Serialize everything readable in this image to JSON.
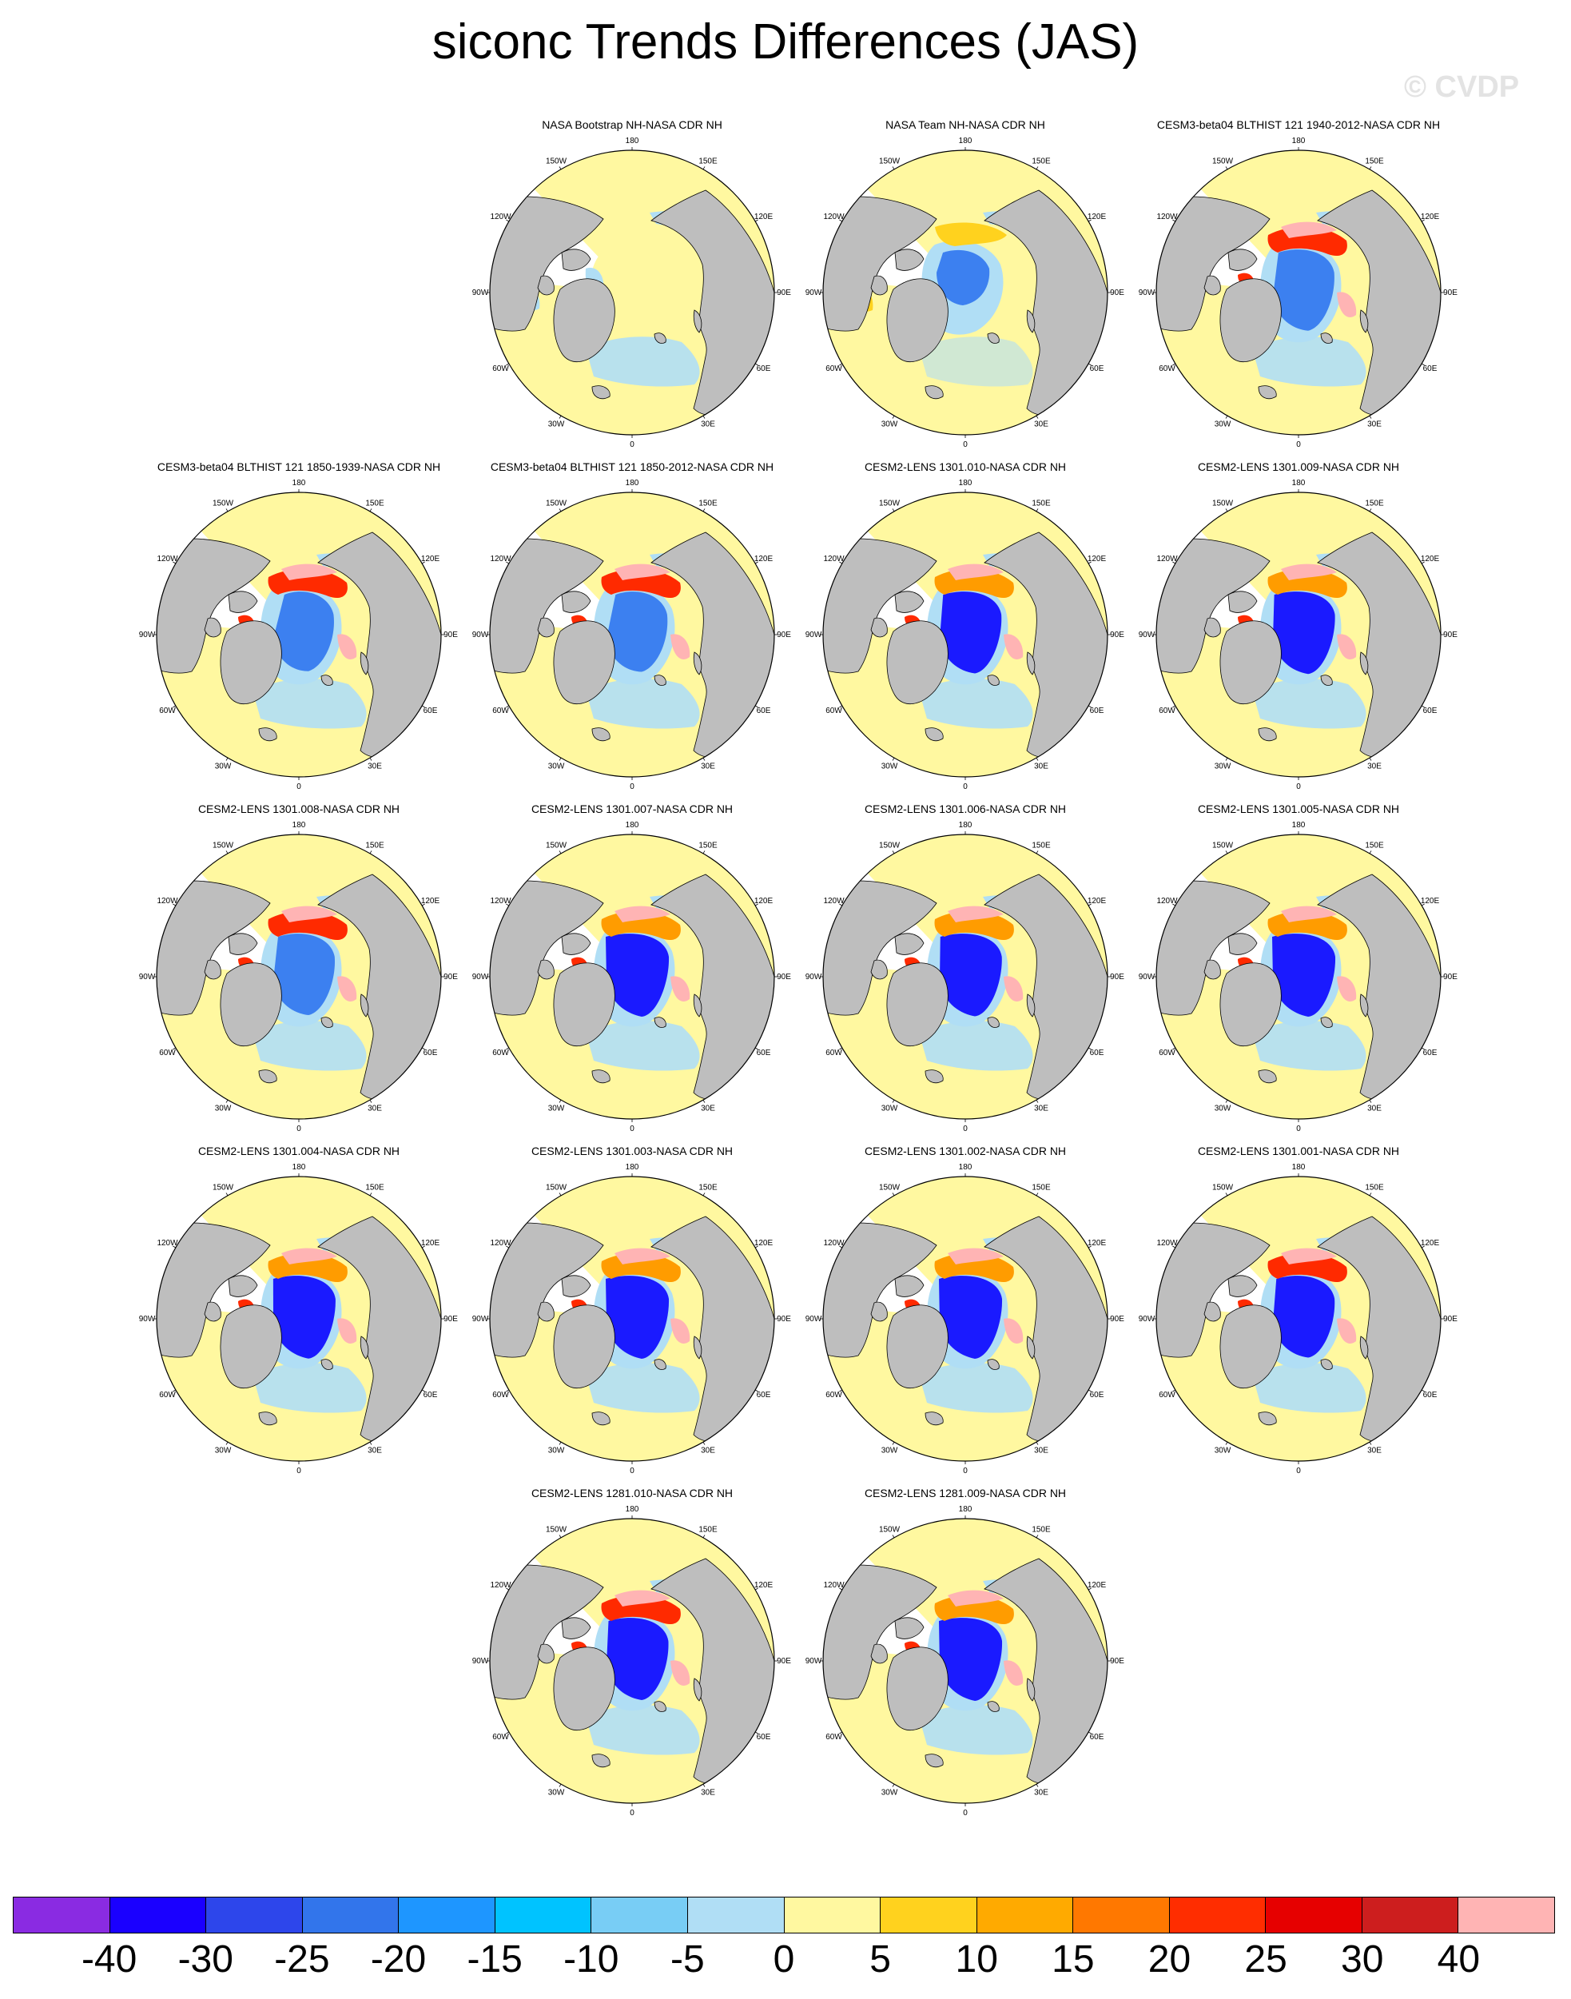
{
  "title": "siconc Trends Differences (JAS)",
  "watermark": "© CVDP",
  "lon_labels": [
    "180",
    "150E",
    "120E",
    "90E",
    "60E",
    "30E",
    "0",
    "30W",
    "60W",
    "90W",
    "120W",
    "150W"
  ],
  "colors": {
    "land": "#bebebe",
    "missing": "#ffffff",
    "ocean_zero": "#fff8a0",
    "pos_light": "#ffd21e",
    "pos_mid": "#ff9c00",
    "pos_strong": "#ff2a00",
    "pos_extreme": "#ffb4b4",
    "neg_light": "#b0def5",
    "neg_mid": "#3c80f0",
    "neg_strong": "#1a1aff",
    "outline": "#000000"
  },
  "colorbar": {
    "colors": [
      "#8a2be2",
      "#1a00ff",
      "#2d46eb",
      "#3275eb",
      "#1e96ff",
      "#00c3ff",
      "#78cdf5",
      "#b0def5",
      "#fff8a0",
      "#ffd21e",
      "#ffaa00",
      "#ff7800",
      "#ff2d00",
      "#e60000",
      "#cd1e1e",
      "#ffb4b4"
    ],
    "labels": [
      "-40",
      "-30",
      "-25",
      "-20",
      "-15",
      "-10",
      "-5",
      "0",
      "5",
      "10",
      "15",
      "20",
      "25",
      "30",
      "40"
    ]
  },
  "panels": [
    {
      "title": "NASA Bootstrap NH-NASA CDR NH",
      "pattern": {
        "type": "bootstrap"
      }
    },
    {
      "title": "NASA Team NH-NASA CDR NH",
      "pattern": {
        "type": "team"
      }
    },
    {
      "title": "CESM3-beta04 BLTHIST 121 1940-2012-NASA CDR NH",
      "pattern": {
        "type": "model",
        "neg": 0.55,
        "pos": 0.7
      }
    },
    {
      "title": "CESM3-beta04 BLTHIST 121 1850-1939-NASA CDR NH",
      "pattern": {
        "type": "model",
        "neg": 0.15,
        "pos": 0.9
      }
    },
    {
      "title": "CESM3-beta04 BLTHIST 121 1850-2012-NASA CDR NH",
      "pattern": {
        "type": "model",
        "neg": 0.3,
        "pos": 0.8
      }
    },
    {
      "title": "CESM2-LENS 1301.010-NASA CDR NH",
      "pattern": {
        "type": "model",
        "neg": 0.7,
        "pos": 0.6
      }
    },
    {
      "title": "CESM2-LENS 1301.009-NASA CDR NH",
      "pattern": {
        "type": "model",
        "neg": 0.85,
        "pos": 0.6
      }
    },
    {
      "title": "CESM2-LENS 1301.008-NASA CDR NH",
      "pattern": {
        "type": "model",
        "neg": 0.6,
        "pos": 0.7
      }
    },
    {
      "title": "CESM2-LENS 1301.007-NASA CDR NH",
      "pattern": {
        "type": "model",
        "neg": 1.0,
        "pos": 0.5
      }
    },
    {
      "title": "CESM2-LENS 1301.006-NASA CDR NH",
      "pattern": {
        "type": "model",
        "neg": 0.9,
        "pos": 0.6
      }
    },
    {
      "title": "CESM2-LENS 1301.005-NASA CDR NH",
      "pattern": {
        "type": "model",
        "neg": 1.0,
        "pos": 0.5
      }
    },
    {
      "title": "CESM2-LENS 1301.004-NASA CDR NH",
      "pattern": {
        "type": "model",
        "neg": 0.95,
        "pos": 0.55
      }
    },
    {
      "title": "CESM2-LENS 1301.003-NASA CDR NH",
      "pattern": {
        "type": "model",
        "neg": 1.0,
        "pos": 0.55
      }
    },
    {
      "title": "CESM2-LENS 1301.002-NASA CDR NH",
      "pattern": {
        "type": "model",
        "neg": 1.0,
        "pos": 0.6
      }
    },
    {
      "title": "CESM2-LENS 1301.001-NASA CDR NH",
      "pattern": {
        "type": "model",
        "neg": 0.7,
        "pos": 0.65
      }
    },
    {
      "title": "CESM2-LENS 1281.010-NASA CDR NH",
      "pattern": {
        "type": "model",
        "neg": 0.8,
        "pos": 0.75
      }
    },
    {
      "title": "CESM2-LENS 1281.009-NASA CDR NH",
      "pattern": {
        "type": "model",
        "neg": 1.0,
        "pos": 0.6
      }
    }
  ]
}
